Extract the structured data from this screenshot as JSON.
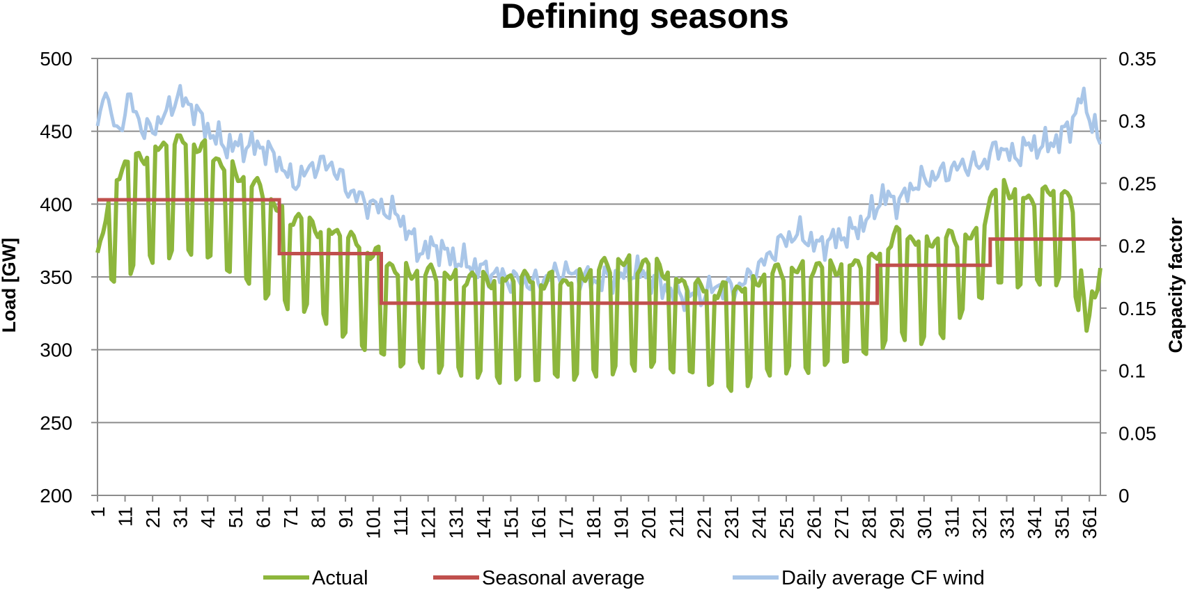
{
  "chart_data": {
    "type": "line",
    "title": "Defining seasons",
    "xlabel": "",
    "ylabel": "Load [GW]",
    "y2label": "Capacity factor",
    "ylim": [
      200,
      500
    ],
    "y_ticks": [
      200,
      250,
      300,
      350,
      400,
      450,
      500
    ],
    "y2lim": [
      0,
      0.35
    ],
    "y2_ticks": [
      0,
      0.05,
      0.1,
      0.15,
      0.2,
      0.25,
      0.3,
      0.35
    ],
    "y2_tick_labels": [
      "0",
      "0.05",
      "0.1",
      "0.15",
      "0.2",
      "0.25",
      "0.3",
      "0.35"
    ],
    "xlim": [
      1,
      365
    ],
    "x_ticks": [
      1,
      11,
      21,
      31,
      41,
      51,
      61,
      71,
      81,
      91,
      101,
      111,
      121,
      131,
      141,
      151,
      161,
      171,
      181,
      191,
      201,
      211,
      221,
      231,
      241,
      251,
      261,
      271,
      281,
      291,
      301,
      311,
      321,
      331,
      341,
      351,
      361
    ],
    "grid": "horizontal",
    "legend_position": "bottom",
    "series": [
      {
        "name": "Actual",
        "axis": "left",
        "color": "#8DB63C",
        "pattern": "weekday_weekend",
        "weekday_envelope": [
          [
            1,
            365
          ],
          [
            8,
            422
          ],
          [
            20,
            437
          ],
          [
            35,
            444
          ],
          [
            45,
            430
          ],
          [
            60,
            410
          ],
          [
            67,
            395
          ],
          [
            80,
            385
          ],
          [
            90,
            378
          ],
          [
            100,
            368
          ],
          [
            110,
            355
          ],
          [
            130,
            350
          ],
          [
            170,
            347
          ],
          [
            190,
            360
          ],
          [
            205,
            358
          ],
          [
            215,
            343
          ],
          [
            230,
            340
          ],
          [
            245,
            352
          ],
          [
            260,
            356
          ],
          [
            282,
            360
          ],
          [
            290,
            378
          ],
          [
            305,
            375
          ],
          [
            320,
            378
          ],
          [
            328,
            415
          ],
          [
            340,
            402
          ],
          [
            352,
            413
          ],
          [
            357,
            375
          ],
          [
            360,
            315
          ],
          [
            363,
            354
          ],
          [
            365,
            355
          ]
        ],
        "weekend_envelope": [
          [
            1,
            335
          ],
          [
            8,
            350
          ],
          [
            20,
            362
          ],
          [
            35,
            368
          ],
          [
            45,
            360
          ],
          [
            60,
            340
          ],
          [
            70,
            330
          ],
          [
            80,
            328
          ],
          [
            90,
            310
          ],
          [
            100,
            300
          ],
          [
            110,
            291
          ],
          [
            130,
            286
          ],
          [
            150,
            279
          ],
          [
            180,
            283
          ],
          [
            200,
            290
          ],
          [
            215,
            285
          ],
          [
            230,
            272
          ],
          [
            245,
            285
          ],
          [
            260,
            287
          ],
          [
            282,
            298
          ],
          [
            290,
            310
          ],
          [
            305,
            305
          ],
          [
            320,
            335
          ],
          [
            328,
            345
          ],
          [
            340,
            345
          ],
          [
            352,
            348
          ],
          [
            357,
            330
          ],
          [
            360,
            296
          ],
          [
            363,
            338
          ],
          [
            365,
            338
          ]
        ]
      },
      {
        "name": "Seasonal average",
        "axis": "left",
        "color": "#C0504D",
        "steps": [
          {
            "from": 1,
            "to": 67,
            "value": 403
          },
          {
            "from": 67,
            "to": 104,
            "value": 366
          },
          {
            "from": 104,
            "to": 284,
            "value": 332
          },
          {
            "from": 284,
            "to": 325,
            "value": 358
          },
          {
            "from": 325,
            "to": 365,
            "value": 376
          }
        ]
      },
      {
        "name": "Daily average CF wind",
        "axis": "right",
        "color": "#A9C6E8",
        "anchors": [
          [
            1,
            0.29
          ],
          [
            3,
            0.328
          ],
          [
            8,
            0.29
          ],
          [
            13,
            0.318
          ],
          [
            18,
            0.29
          ],
          [
            24,
            0.3
          ],
          [
            30,
            0.32
          ],
          [
            36,
            0.31
          ],
          [
            42,
            0.29
          ],
          [
            48,
            0.28
          ],
          [
            54,
            0.28
          ],
          [
            60,
            0.28
          ],
          [
            66,
            0.27
          ],
          [
            72,
            0.25
          ],
          [
            80,
            0.265
          ],
          [
            86,
            0.265
          ],
          [
            92,
            0.245
          ],
          [
            98,
            0.235
          ],
          [
            104,
            0.23
          ],
          [
            110,
            0.225
          ],
          [
            114,
            0.21
          ],
          [
            118,
            0.195
          ],
          [
            124,
            0.2
          ],
          [
            130,
            0.19
          ],
          [
            136,
            0.185
          ],
          [
            142,
            0.18
          ],
          [
            150,
            0.173
          ],
          [
            160,
            0.17
          ],
          [
            170,
            0.18
          ],
          [
            176,
            0.175
          ],
          [
            182,
            0.172
          ],
          [
            190,
            0.175
          ],
          [
            196,
            0.18
          ],
          [
            202,
            0.175
          ],
          [
            208,
            0.165
          ],
          [
            214,
            0.16
          ],
          [
            220,
            0.16
          ],
          [
            226,
            0.168
          ],
          [
            232,
            0.165
          ],
          [
            238,
            0.175
          ],
          [
            244,
            0.19
          ],
          [
            250,
            0.205
          ],
          [
            256,
            0.21
          ],
          [
            262,
            0.2
          ],
          [
            268,
            0.205
          ],
          [
            274,
            0.21
          ],
          [
            280,
            0.22
          ],
          [
            286,
            0.24
          ],
          [
            292,
            0.235
          ],
          [
            298,
            0.25
          ],
          [
            304,
            0.255
          ],
          [
            310,
            0.26
          ],
          [
            316,
            0.265
          ],
          [
            322,
            0.265
          ],
          [
            328,
            0.28
          ],
          [
            334,
            0.27
          ],
          [
            338,
            0.28
          ],
          [
            344,
            0.28
          ],
          [
            350,
            0.285
          ],
          [
            355,
            0.3
          ],
          [
            358,
            0.32
          ],
          [
            362,
            0.3
          ],
          [
            365,
            0.28
          ]
        ]
      }
    ]
  }
}
